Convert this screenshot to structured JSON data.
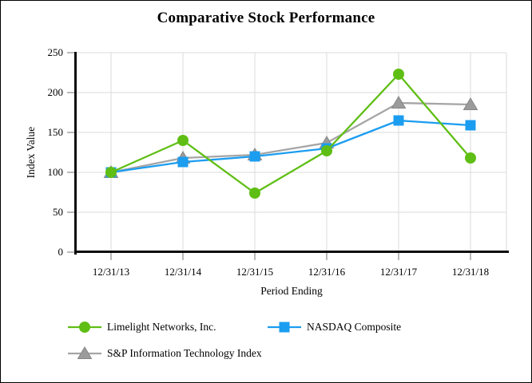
{
  "chart_data": {
    "type": "line",
    "title": "Comparative Stock Performance",
    "xlabel": "Period Ending",
    "ylabel": "Index Value",
    "categories": [
      "12/31/13",
      "12/31/14",
      "12/31/15",
      "12/31/16",
      "12/31/17",
      "12/31/18"
    ],
    "ytick_labels": [
      "0",
      "50",
      "100",
      "150",
      "200",
      "250"
    ],
    "ylim": [
      0,
      250
    ],
    "ytick_step": 50,
    "grid": true,
    "legend_position": "bottom-left",
    "series": [
      {
        "name": "Limelight Networks, Inc.",
        "marker": "circle",
        "color": "#5FBE14",
        "values": [
          100,
          140,
          74,
          127,
          223,
          118
        ]
      },
      {
        "name": "NASDAQ Composite",
        "marker": "square",
        "color": "#1B9DF0",
        "values": [
          100,
          113,
          120,
          130,
          165,
          159
        ]
      },
      {
        "name": "S&P Information Technology Index",
        "marker": "triangle",
        "color": "#A5A5A5",
        "marker_color": "#9B9B9B",
        "edge_color": "#878787",
        "values": [
          100,
          118,
          122,
          137,
          187,
          185
        ]
      }
    ],
    "colors": {
      "grid": "#DBDBDB",
      "axis": "#0A0A0A",
      "tick": "#8C8C8C",
      "background": "#FFFFFF"
    }
  }
}
